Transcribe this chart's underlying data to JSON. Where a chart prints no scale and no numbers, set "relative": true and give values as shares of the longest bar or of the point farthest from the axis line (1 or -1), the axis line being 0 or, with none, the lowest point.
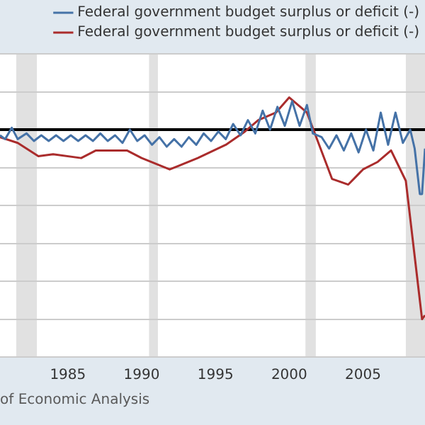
{
  "chart_data": {
    "type": "line",
    "relative": true,
    "grid": "y",
    "legend": "top right",
    "marker": "none",
    "xlim": [
      1980.4,
      2009.2
    ],
    "xticks": [
      1985,
      1990,
      1995,
      2000,
      2005
    ],
    "annotations": [
      "of Economic Analysis"
    ],
    "ref_lines": [
      {
        "axis": "y",
        "value": 0,
        "color": "#000000"
      }
    ],
    "bands": [
      {
        "axis": "x",
        "from": 1981.5,
        "to": 1982.9,
        "color": "#e1e1e1"
      },
      {
        "axis": "x",
        "from": 1990.5,
        "to": 1991.1,
        "color": "#e1e1e1"
      },
      {
        "axis": "x",
        "from": 2001.1,
        "to": 2001.8,
        "color": "#e1e1e1"
      },
      {
        "axis": "x",
        "from": 2007.9,
        "to": 2009.2,
        "color": "#e1e1e1"
      }
    ],
    "series": [
      {
        "name": "Federal government budget surplus or deficit (-)",
        "color": "#4572a7",
        "x": [
          1980.4,
          1980.75,
          1981.2,
          1981.6,
          1982.2,
          1982.7,
          1983.2,
          1983.7,
          1984.2,
          1984.7,
          1985.2,
          1985.7,
          1986.2,
          1986.7,
          1987.2,
          1987.7,
          1988.2,
          1988.7,
          1989.2,
          1989.7,
          1990.2,
          1990.7,
          1991.2,
          1991.7,
          1992.2,
          1992.7,
          1993.2,
          1993.7,
          1994.2,
          1994.7,
          1995.2,
          1995.7,
          1996.2,
          1996.7,
          1997.2,
          1997.7,
          1998.2,
          1998.7,
          1999.2,
          1999.7,
          2000.2,
          2000.7,
          2001.2,
          2001.6,
          2002.2,
          2002.7,
          2003.2,
          2003.7,
          2004.2,
          2004.7,
          2005.2,
          2005.7,
          2006.2,
          2006.7,
          2007.2,
          2007.7,
          2008.2,
          2008.5,
          2008.85,
          2009.0,
          2009.2
        ],
        "values": [
          -0.03,
          -0.05,
          0.01,
          -0.05,
          -0.02,
          -0.06,
          -0.03,
          -0.06,
          -0.03,
          -0.06,
          -0.03,
          -0.06,
          -0.03,
          -0.06,
          -0.02,
          -0.06,
          -0.03,
          -0.07,
          0.0,
          -0.06,
          -0.03,
          -0.08,
          -0.04,
          -0.09,
          -0.05,
          -0.09,
          -0.04,
          -0.08,
          -0.02,
          -0.06,
          -0.01,
          -0.05,
          0.03,
          -0.03,
          0.05,
          -0.02,
          0.1,
          0.0,
          0.12,
          0.02,
          0.15,
          0.02,
          0.13,
          -0.02,
          -0.04,
          -0.1,
          -0.03,
          -0.11,
          -0.02,
          -0.12,
          0.0,
          -0.11,
          0.09,
          -0.08,
          0.09,
          -0.07,
          0.0,
          -0.1,
          -0.34,
          -0.34,
          -0.1
        ]
      },
      {
        "name": "Federal government budget surplus or deficit (-)",
        "color": "#aa2c2c",
        "x": [
          1980.4,
          1981.6,
          1983.0,
          1984.0,
          1985.9,
          1986.9,
          1989.0,
          1990.0,
          1991.9,
          1993.8,
          1995.7,
          1997.0,
          1997.9,
          1999.1,
          2000.0,
          2001.2,
          2002.9,
          2004.0,
          2005.0,
          2006.0,
          2006.9,
          2007.9,
          2009.0,
          2009.2
        ],
        "values": [
          -0.04,
          -0.07,
          -0.14,
          -0.13,
          -0.15,
          -0.11,
          -0.11,
          -0.15,
          -0.21,
          -0.15,
          -0.08,
          -0.01,
          0.05,
          0.09,
          0.17,
          0.09,
          -0.26,
          -0.29,
          -0.21,
          -0.17,
          -0.11,
          -0.27,
          -1,
          -0.98
        ]
      }
    ]
  }
}
